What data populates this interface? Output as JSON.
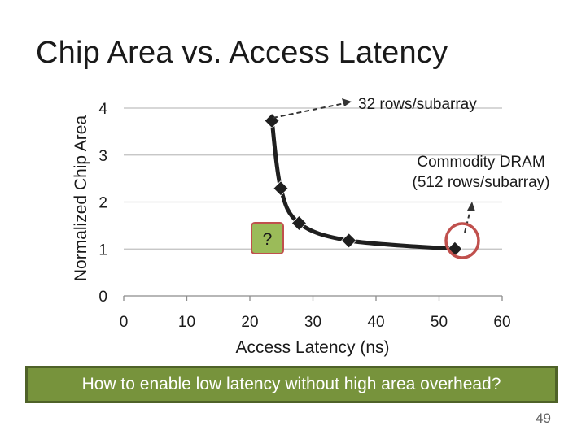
{
  "slide": {
    "title": "Chip Area vs. Access Latency",
    "banner_text": "How to enable low latency without high area overhead?",
    "page_number": "49"
  },
  "chart_data": {
    "type": "scatter",
    "title": "",
    "xlabel": "Access Latency (ns)",
    "ylabel": "Normalized Chip Area",
    "xlim": [
      0,
      60
    ],
    "ylim": [
      0,
      4
    ],
    "xticks": [
      0,
      10,
      20,
      30,
      40,
      50,
      60
    ],
    "yticks": [
      0,
      1,
      2,
      3,
      4
    ],
    "grid": "horizontal",
    "marker": "diamond",
    "line": "smoothed",
    "series": [
      {
        "points": [
          {
            "x": 23.5,
            "y": 3.73
          },
          {
            "x": 24.9,
            "y": 2.29
          },
          {
            "x": 27.8,
            "y": 1.55
          },
          {
            "x": 35.7,
            "y": 1.18
          },
          {
            "x": 52.5,
            "y": 1.0
          }
        ]
      }
    ],
    "annotations": {
      "top": "32 rows/subarray",
      "commodity": "Commodity DRAM\n(512 rows/subarray)",
      "question": "?"
    },
    "colors": {
      "series": "#1f1f1f",
      "grid": "#bfbfbf",
      "question_fill": "#9bbb59",
      "question_border": "#c0504d",
      "circle": "#c0504d"
    }
  }
}
